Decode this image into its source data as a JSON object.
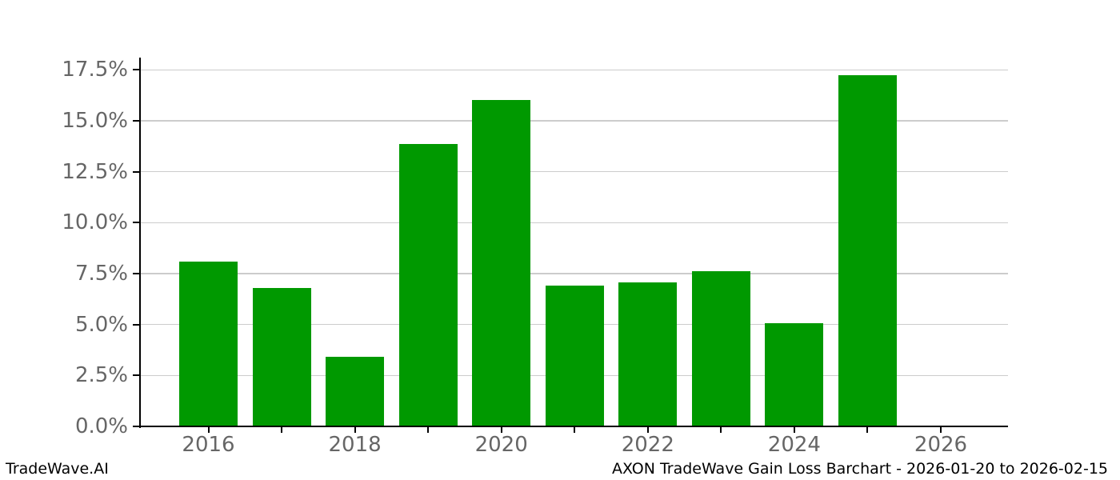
{
  "footer": {
    "brand": "TradeWave.AI",
    "caption": "AXON TradeWave Gain Loss Barchart - 2026-01-20 to 2026-02-15"
  },
  "chart_data": {
    "type": "bar",
    "title": "",
    "xlabel": "",
    "ylabel": "",
    "categories": [
      "2016",
      "2017",
      "2018",
      "2019",
      "2020",
      "2021",
      "2022",
      "2023",
      "2024",
      "2025"
    ],
    "values": [
      8.1,
      6.8,
      3.4,
      13.85,
      16.0,
      6.9,
      7.05,
      7.6,
      5.05,
      17.25
    ],
    "units": "percent",
    "ylim": [
      0,
      18.1
    ],
    "yticks": [
      0,
      2.5,
      5,
      7.5,
      10,
      12.5,
      15,
      17.5
    ],
    "ytick_labels": [
      "0.0%",
      "2.5%",
      "5.0%",
      "7.5%",
      "10.0%",
      "12.5%",
      "15.0%",
      "17.5%"
    ],
    "x_axis": {
      "tick_years": [
        2016,
        2017,
        2018,
        2019,
        2020,
        2021,
        2022,
        2023,
        2024,
        2025,
        2026
      ],
      "labeled_years": [
        2016,
        2018,
        2020,
        2022,
        2024,
        2026
      ]
    },
    "grid": true,
    "legend": "none",
    "bar_color": "#009900",
    "gridline_color": "#cccccc",
    "axis_color": "#000000",
    "tick_label_color": "#666666"
  }
}
